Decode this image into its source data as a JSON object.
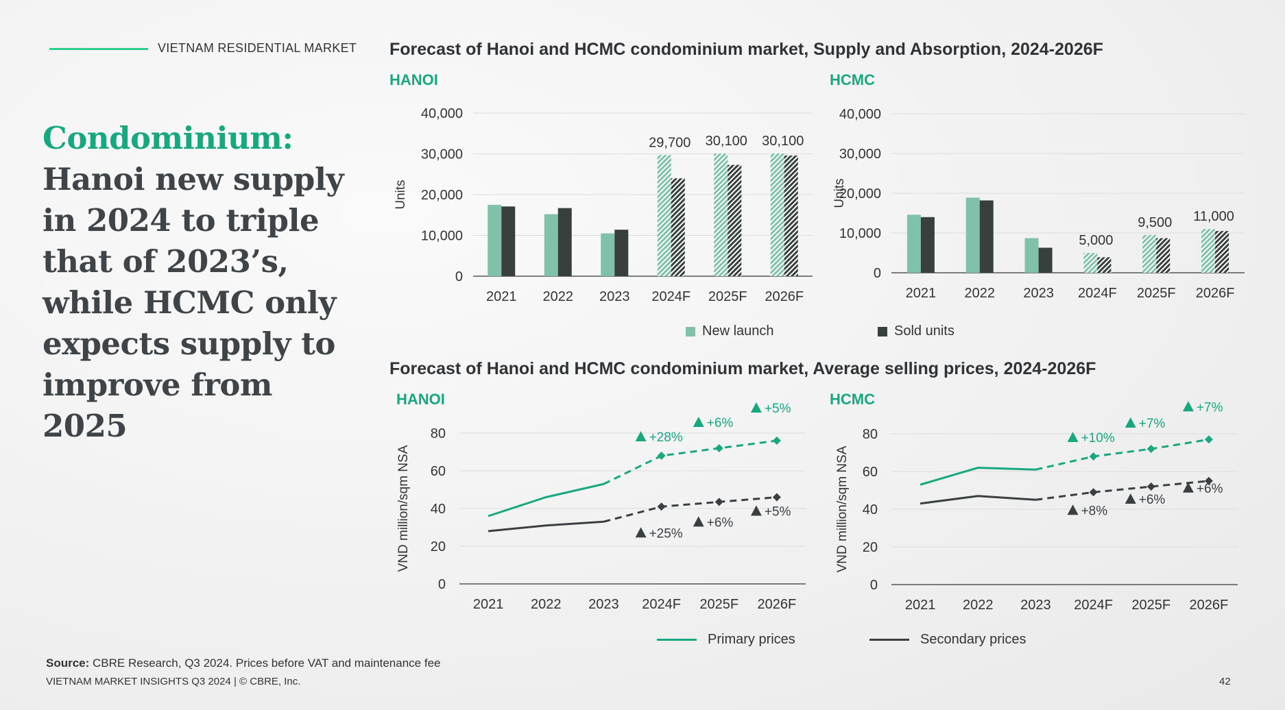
{
  "header": {
    "section_label": "VIETNAM RESIDENTIAL MARKET"
  },
  "headline": {
    "accent": "Condominium:",
    "body": "Hanoi new supply in 2024 to triple that of 2023’s, while HCMC only expects supply to improve from 2025"
  },
  "charts": {
    "supply_title": "Forecast of Hanoi and HCMC condominium market, Supply and Absorption, 2024-2026F",
    "price_title": "Forecast of Hanoi and HCMC condominium market, Average selling prices, 2024-2026F",
    "supply_legend": {
      "new_launch": "New launch",
      "sold_units": "Sold units"
    },
    "price_legend": {
      "primary": "Primary prices",
      "secondary": "Secondary prices"
    }
  },
  "colors": {
    "accent": "#17a880",
    "new_launch": "#7fc1a9",
    "sold_units": "#38403e",
    "primary_line": "#17a880",
    "secondary_line": "#3a3f42"
  },
  "chart_data": [
    {
      "type": "bar",
      "title": "HANOI",
      "ylabel": "Units",
      "categories": [
        "2021",
        "2022",
        "2023",
        "2024F",
        "2025F",
        "2026F"
      ],
      "ylim": [
        0,
        40000
      ],
      "yticks": [
        "0",
        "10,000",
        "20,000",
        "30,000",
        "40,000"
      ],
      "series": [
        {
          "name": "New launch",
          "values": [
            17500,
            15200,
            10500,
            29700,
            30100,
            30100
          ]
        },
        {
          "name": "Sold units",
          "values": [
            17100,
            16700,
            11400,
            24000,
            27300,
            29600
          ]
        }
      ],
      "forecast_from_index": 3,
      "annotations": [
        {
          "x": "2024F",
          "label": "29,700"
        },
        {
          "x": "2025F",
          "label": "30,100"
        },
        {
          "x": "2026F",
          "label": "30,100"
        }
      ]
    },
    {
      "type": "bar",
      "title": "HCMC",
      "ylabel": "Units",
      "categories": [
        "2021",
        "2022",
        "2023",
        "2024F",
        "2025F",
        "2026F"
      ],
      "ylim": [
        0,
        40000
      ],
      "yticks": [
        "0",
        "10,000",
        "20,000",
        "30,000",
        "40,000"
      ],
      "series": [
        {
          "name": "New launch",
          "values": [
            14600,
            18900,
            8700,
            5000,
            9500,
            11000
          ]
        },
        {
          "name": "Sold units",
          "values": [
            14000,
            18200,
            6300,
            3900,
            8700,
            10500
          ]
        }
      ],
      "forecast_from_index": 3,
      "annotations": [
        {
          "x": "2024F",
          "label": "5,000"
        },
        {
          "x": "2025F",
          "label": "9,500"
        },
        {
          "x": "2026F",
          "label": "11,000"
        }
      ]
    },
    {
      "type": "line",
      "title": "HANOI",
      "ylabel": "VND million/sqm NSA",
      "categories": [
        "2021",
        "2022",
        "2023",
        "2024F",
        "2025F",
        "2026F"
      ],
      "ylim": [
        0,
        80
      ],
      "yticks": [
        "0",
        "20",
        "40",
        "60",
        "80"
      ],
      "series": [
        {
          "name": "Primary prices",
          "values": [
            36,
            46,
            53,
            68,
            72,
            76
          ],
          "changes": [
            "",
            "",
            "",
            "+28%",
            "+6%",
            "+5%"
          ]
        },
        {
          "name": "Secondary prices",
          "values": [
            28,
            31,
            33,
            41,
            43.5,
            46
          ],
          "changes": [
            "",
            "",
            "",
            "+25%",
            "+6%",
            "+5%"
          ]
        }
      ],
      "forecast_from_index": 2
    },
    {
      "type": "line",
      "title": "HCMC",
      "ylabel": "VND million/sqm NSA",
      "categories": [
        "2021",
        "2022",
        "2023",
        "2024F",
        "2025F",
        "2026F"
      ],
      "ylim": [
        0,
        80
      ],
      "yticks": [
        "0",
        "20",
        "40",
        "60",
        "80"
      ],
      "series": [
        {
          "name": "Primary prices",
          "values": [
            53,
            62,
            61,
            68,
            72,
            77
          ],
          "changes": [
            "",
            "",
            "",
            "+10%",
            "+7%",
            "+7%"
          ]
        },
        {
          "name": "Secondary prices",
          "values": [
            43,
            47,
            45,
            49,
            52,
            55
          ],
          "changes": [
            "",
            "",
            "",
            "+8%",
            "+6%",
            "+6%"
          ]
        }
      ],
      "forecast_from_index": 2
    }
  ],
  "footer": {
    "source_label": "Source:",
    "source_text": "CBRE Research, Q3 2024. Prices before VAT and maintenance fee",
    "publication": "VIETNAM MARKET INSIGHTS Q3 2024 | © CBRE, Inc.",
    "page_number": "42"
  }
}
